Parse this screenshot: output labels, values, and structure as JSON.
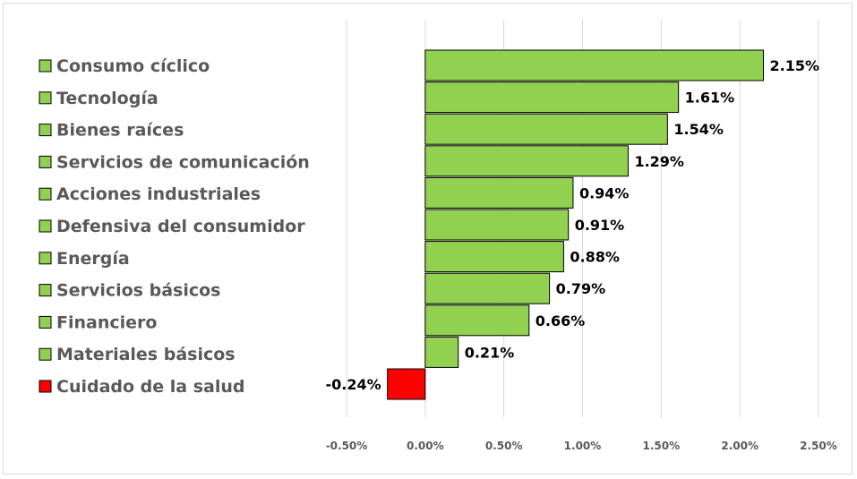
{
  "chart_data": {
    "type": "bar",
    "orientation": "horizontal",
    "title": "",
    "xlabel": "",
    "ylabel": "",
    "categories": [
      "Consumo cíclico",
      "Tecnología",
      "Bienes raíces",
      "Servicios de comunicación",
      "Acciones industriales",
      "Defensiva del consumidor",
      "Energía",
      "Servicios básicos",
      "Financiero",
      "Materiales básicos",
      "Cuidado de la salud"
    ],
    "values": [
      2.15,
      1.61,
      1.54,
      1.29,
      0.94,
      0.91,
      0.88,
      0.79,
      0.66,
      0.21,
      -0.24
    ],
    "data_labels": [
      "2.15%",
      "1.61%",
      "1.54%",
      "1.29%",
      "0.94%",
      "0.91%",
      "0.88%",
      "0.79%",
      "0.66%",
      "0.21%",
      "-0.24%"
    ],
    "xlim": [
      -0.5,
      2.5
    ],
    "x_ticks": [
      -0.5,
      0,
      0.5,
      1.0,
      1.5,
      2.0,
      2.5
    ],
    "x_tick_labels": [
      "-0.50%",
      "0.00%",
      "0.50%",
      "1.00%",
      "1.50%",
      "2.00%",
      "2.50%"
    ],
    "grid": "vertical",
    "legend_position": "left",
    "colors": {
      "positive": "#92d050",
      "negative": "#ff0000",
      "grid": "#d9d9d9",
      "label_text": "#595959",
      "data_label_text": "#000000"
    }
  }
}
